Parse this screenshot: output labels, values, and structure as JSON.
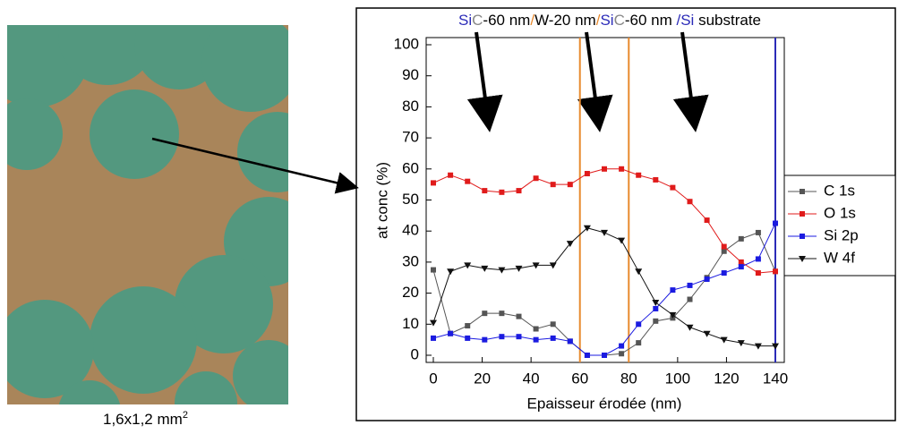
{
  "chart_data": {
    "type": "line",
    "title_parts": [
      {
        "text": "Si",
        "color": "#2b2bb8"
      },
      {
        "text": "C",
        "color": "#888888"
      },
      {
        "text": "-60 nm",
        "color": "#000000"
      },
      {
        "text": "/",
        "color": "#e88a2e"
      },
      {
        "text": "W-20 nm",
        "color": "#000000"
      },
      {
        "text": "/",
        "color": "#e88a2e"
      },
      {
        "text": "Si",
        "color": "#2b2bb8"
      },
      {
        "text": "C",
        "color": "#888888"
      },
      {
        "text": "-60 nm ",
        "color": "#000000"
      },
      {
        "text": "/Si",
        "color": "#2b2bb8"
      },
      {
        "text": " substrate",
        "color": "#000000"
      }
    ],
    "image_caption": "1,6x1,2 mm",
    "image_caption_sup": "2",
    "x_label": "Epaisseur érodée (nm)",
    "y_label": "at conc (%)",
    "x": [
      0,
      7,
      14,
      21,
      28,
      35,
      42,
      49,
      56,
      63,
      70,
      77,
      84,
      91,
      98,
      105,
      112,
      119,
      126,
      133,
      140
    ],
    "series": [
      {
        "name": "C 1s",
        "color": "#555555",
        "marker": "square",
        "values": [
          27.5,
          7,
          9.5,
          13.5,
          13.5,
          12.5,
          8.5,
          10,
          4.5,
          0,
          0,
          0.5,
          4,
          11,
          12,
          18,
          25,
          33.5,
          37.5,
          39.5,
          27
        ]
      },
      {
        "name": "O 1s",
        "color": "#e01b1b",
        "marker": "square",
        "values": [
          55.5,
          58,
          56,
          53,
          52.5,
          53,
          57,
          55,
          55,
          58.5,
          60,
          60,
          58,
          56.5,
          54,
          49.5,
          43.5,
          35,
          30,
          26.5,
          27
        ]
      },
      {
        "name": "Si 2p",
        "color": "#1b1be0",
        "marker": "square",
        "values": [
          5.5,
          7,
          5.5,
          5,
          6,
          6,
          5,
          5.5,
          4.5,
          0,
          0,
          3,
          10,
          15,
          21,
          22.5,
          24.5,
          26.5,
          28.5,
          31,
          42.5
        ]
      },
      {
        "name": "W 4f",
        "color": "#111111",
        "marker": "triangle-down",
        "values": [
          10.5,
          27,
          29,
          28,
          27.5,
          28,
          29,
          29,
          36,
          41,
          39.5,
          37,
          27,
          17,
          13,
          9,
          7,
          5,
          4,
          3,
          3
        ]
      }
    ],
    "vlines": [
      {
        "value": 60,
        "color": "#e88a2e"
      },
      {
        "value": 80,
        "color": "#e88a2e"
      },
      {
        "value": 140,
        "color": "#2b2bb8"
      }
    ],
    "xlim": [
      0,
      140
    ],
    "xticks": [
      0,
      20,
      40,
      60,
      80,
      100,
      120,
      140
    ],
    "ylim": [
      0,
      100
    ],
    "yticks": [
      0,
      10,
      20,
      30,
      40,
      50,
      60,
      70,
      80,
      90,
      100
    ]
  }
}
